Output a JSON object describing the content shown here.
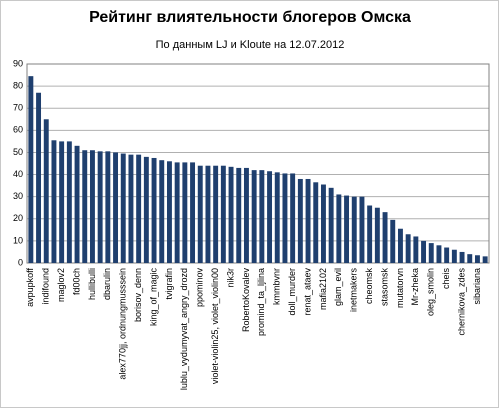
{
  "chart_data": {
    "type": "bar",
    "title": "Рейтинг влиятельности блогеров Омска",
    "subtitle": "По данным LJ и Kloute на 12.07.2012",
    "categories": [
      "avpupkoff",
      null,
      "indifound",
      null,
      "maglov2",
      null,
      "fd00ch",
      null,
      "hullibulli",
      null,
      "dbarulin",
      null,
      "alex770jj, ordnungmusssein",
      null,
      "borisov_denn",
      null,
      "king_of_magic",
      null,
      "tvigrafin",
      null,
      "lublu_vydumyvat_angry_drozd",
      null,
      "ppominov",
      null,
      "violet-violin25, violet_violin00",
      null,
      "nik3r",
      null,
      "RobertoKovalev",
      null,
      "promind_ta_ljlina",
      null,
      "kmmbvnr",
      null,
      "doll_murder",
      null,
      "renat_ataev",
      null,
      "mafia2102",
      null,
      "glam_evil",
      null,
      "inetmakers",
      null,
      "cheomsk",
      null,
      "stasomsk",
      null,
      "mutatorvn",
      null,
      "Mr-zheka",
      null,
      "oleg_smolin",
      null,
      "cheis",
      null,
      "chernikova_zdes",
      null,
      "sibariana",
      null
    ],
    "values": [
      84.5,
      77,
      65,
      55.5,
      55,
      55,
      53,
      51,
      51,
      50.5,
      50.5,
      50,
      49.5,
      49,
      49,
      48,
      47.5,
      46.5,
      46,
      45.5,
      45.5,
      45.5,
      44,
      44,
      44,
      44,
      43.5,
      43,
      43,
      42,
      42,
      41.5,
      41,
      40.5,
      40.5,
      38,
      38,
      36.5,
      35.5,
      34,
      31,
      30.5,
      30,
      30,
      26,
      25,
      23,
      19.5,
      15.5,
      13,
      12,
      10,
      9,
      8,
      7,
      6,
      5,
      4,
      3.5,
      3
    ],
    "color": "#1f3f6e",
    "ylim": [
      0,
      90
    ],
    "yticks": [
      0,
      10,
      20,
      30,
      40,
      50,
      60,
      70,
      80,
      90
    ],
    "grid": true
  }
}
